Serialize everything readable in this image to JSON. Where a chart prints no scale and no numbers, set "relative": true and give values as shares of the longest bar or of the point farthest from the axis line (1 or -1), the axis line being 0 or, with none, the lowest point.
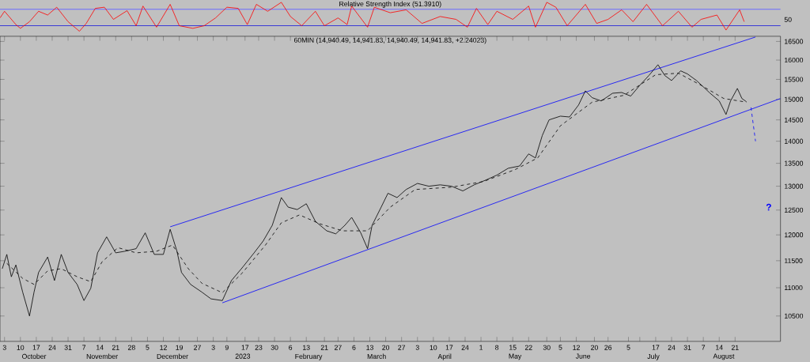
{
  "chart_data": [
    {
      "type": "line",
      "title": "Relative Strength Index (51.3910)",
      "color": "#ff0000",
      "xlim": [
        "2022-10-01",
        "2023-09-10"
      ],
      "relative": true,
      "annotations": [
        "50"
      ],
      "x": [
        "2022-10-01",
        "2022-10-03",
        "2022-10-08",
        "2022-10-10",
        "2022-10-14",
        "2022-10-18",
        "2022-10-22",
        "2022-10-26",
        "2022-10-31",
        "2022-11-05",
        "2022-11-08",
        "2022-11-12",
        "2022-11-16",
        "2022-11-20",
        "2022-11-26",
        "2022-11-30",
        "2022-12-03",
        "2022-12-09",
        "2022-12-15",
        "2022-12-19",
        "2022-12-25",
        "2022-12-30",
        "2023-01-04",
        "2023-01-09",
        "2023-01-14",
        "2023-01-18",
        "2023-01-22",
        "2023-01-27",
        "2023-02-02",
        "2023-02-06",
        "2023-02-11",
        "2023-02-17",
        "2023-02-21",
        "2023-02-27",
        "2023-03-03",
        "2023-03-05",
        "2023-03-12",
        "2023-03-15",
        "2023-03-22",
        "2023-03-29",
        "2023-04-05",
        "2023-04-13",
        "2023-04-20",
        "2023-04-25",
        "2023-04-29",
        "2023-05-04",
        "2023-05-08",
        "2023-05-15",
        "2023-05-22",
        "2023-05-25",
        "2023-05-30",
        "2023-06-03",
        "2023-06-08",
        "2023-06-16",
        "2023-06-21",
        "2023-06-26",
        "2023-07-02",
        "2023-07-07",
        "2023-07-13",
        "2023-07-20",
        "2023-07-27",
        "2023-08-02",
        "2023-08-06",
        "2023-08-13",
        "2023-08-17",
        "2023-08-23",
        "2023-08-25"
      ],
      "values": [
        0.46,
        0.69,
        0.23,
        0.1,
        0.33,
        0.69,
        0.56,
        0.83,
        0.33,
        0,
        0.27,
        0.79,
        0.83,
        0.41,
        0.71,
        0.19,
        0.87,
        0.14,
        0.93,
        0.19,
        0.1,
        0.19,
        0.46,
        0.83,
        0.79,
        0.23,
        0.93,
        0.69,
        1,
        0.51,
        0.19,
        0.69,
        0.19,
        0.46,
        0.23,
        0.87,
        0.14,
        0.83,
        0.64,
        0.74,
        0.27,
        0.51,
        0.41,
        0.14,
        0.79,
        0.23,
        0.69,
        0.41,
        0.87,
        0.14,
        1,
        0.83,
        0.19,
        0.93,
        0.27,
        0.41,
        0.74,
        0.33,
        0.93,
        0.19,
        0.69,
        0.14,
        0.41,
        0.56,
        0.04,
        0.74,
        0.33
      ],
      "ref_lines": [
        {
          "axis": "y",
          "value": 0.76,
          "color": "#6b6bff"
        },
        {
          "axis": "y",
          "value": 0.19,
          "color": "#3a3ad6"
        }
      ]
    },
    {
      "type": "line",
      "title": "60MIN (14,940.49, 14,941.83, 14,940.49, 14,941.83, +2.24023)",
      "log": true,
      "xlim": [
        "2022-10-01",
        "2023-09-10"
      ],
      "ylim": [
        10070,
        16640
      ],
      "yticks": [
        10500,
        11000,
        11500,
        12000,
        12500,
        13000,
        13500,
        14000,
        14500,
        15000,
        15500,
        16000,
        16500
      ],
      "xticks": [
        {
          "value": "2022-10-03",
          "label": "3"
        },
        {
          "value": "2022-10-10",
          "label": "10"
        },
        {
          "value": "2022-10-17",
          "label": "17"
        },
        {
          "value": "2022-10-24",
          "label": "24"
        },
        {
          "value": "2022-10-31",
          "label": "31"
        },
        {
          "value": "2022-11-07",
          "label": "7"
        },
        {
          "value": "2022-11-14",
          "label": "14"
        },
        {
          "value": "2022-11-21",
          "label": "21"
        },
        {
          "value": "2022-11-28",
          "label": "28"
        },
        {
          "value": "2022-12-05",
          "label": "5"
        },
        {
          "value": "2022-12-12",
          "label": "12"
        },
        {
          "value": "2022-12-19",
          "label": "19"
        },
        {
          "value": "2022-12-27",
          "label": "27"
        },
        {
          "value": "2023-01-03",
          "label": "3"
        },
        {
          "value": "2023-01-09",
          "label": "9"
        },
        {
          "value": "2023-01-17",
          "label": "17"
        },
        {
          "value": "2023-01-23",
          "label": "23"
        },
        {
          "value": "2023-01-30",
          "label": "30"
        },
        {
          "value": "2023-02-06",
          "label": "6"
        },
        {
          "value": "2023-02-13",
          "label": "13"
        },
        {
          "value": "2023-02-21",
          "label": "21"
        },
        {
          "value": "2023-02-27",
          "label": "27"
        },
        {
          "value": "2023-03-06",
          "label": "6"
        },
        {
          "value": "2023-03-13",
          "label": "13"
        },
        {
          "value": "2023-03-20",
          "label": "20"
        },
        {
          "value": "2023-03-27",
          "label": "27"
        },
        {
          "value": "2023-04-03",
          "label": "3"
        },
        {
          "value": "2023-04-10",
          "label": "10"
        },
        {
          "value": "2023-04-17",
          "label": "17"
        },
        {
          "value": "2023-04-24",
          "label": "24"
        },
        {
          "value": "2023-05-01",
          "label": "1"
        },
        {
          "value": "2023-05-08",
          "label": "8"
        },
        {
          "value": "2023-05-15",
          "label": "15"
        },
        {
          "value": "2023-05-22",
          "label": "22"
        },
        {
          "value": "2023-05-30",
          "label": "30"
        },
        {
          "value": "2023-06-05",
          "label": "5"
        },
        {
          "value": "2023-06-12",
          "label": "12"
        },
        {
          "value": "2023-06-20",
          "label": "20"
        },
        {
          "value": "2023-06-26",
          "label": "26"
        },
        {
          "value": "2023-07-05",
          "label": "5"
        },
        {
          "value": "2023-07-10",
          "label": null
        },
        {
          "value": "2023-07-17",
          "label": "17"
        },
        {
          "value": "2023-07-24",
          "label": "24"
        },
        {
          "value": "2023-07-31",
          "label": "31"
        },
        {
          "value": "2023-08-07",
          "label": "7"
        },
        {
          "value": "2023-08-14",
          "label": "14"
        },
        {
          "value": "2023-08-21",
          "label": "21"
        }
      ],
      "x2lim": [
        "2022-10-01",
        "2023-09-10"
      ],
      "x2ticks": [
        {
          "value": "2022-10-16",
          "label": "October"
        },
        {
          "value": "2022-11-15",
          "label": "November"
        },
        {
          "value": "2022-12-16",
          "label": "December"
        },
        {
          "value": "2023-01-16",
          "label": "2023"
        },
        {
          "value": "2023-02-14",
          "label": "February"
        },
        {
          "value": "2023-03-16",
          "label": "March"
        },
        {
          "value": "2023-04-15",
          "label": "April"
        },
        {
          "value": "2023-05-16",
          "label": "May"
        },
        {
          "value": "2023-06-15",
          "label": "June"
        },
        {
          "value": "2023-07-16",
          "label": "July"
        },
        {
          "value": "2023-08-16",
          "label": "August"
        }
      ],
      "annotations": [
        "?"
      ],
      "series": [
        {
          "color": "#0000ff",
          "x": [
            "2022-12-15",
            "2023-08-30"
          ],
          "values": [
            12160,
            16620
          ]
        },
        {
          "color": "#0000ff",
          "x": [
            "2023-01-07",
            "2023-09-10"
          ],
          "values": [
            10730,
            15020
          ]
        },
        {
          "color": "#000000",
          "line_style": "dashed",
          "x": [
            "2022-10-04",
            "2022-10-11",
            "2022-10-16",
            "2022-10-22",
            "2022-10-28",
            "2022-11-04",
            "2022-11-10",
            "2022-11-15",
            "2022-11-22",
            "2022-11-30",
            "2022-12-09",
            "2022-12-16",
            "2022-12-23",
            "2022-12-29",
            "2023-01-07",
            "2023-01-16",
            "2023-01-26",
            "2023-02-02",
            "2023-02-10",
            "2023-02-19",
            "2023-03-01",
            "2023-03-12",
            "2023-03-22",
            "2023-04-02",
            "2023-04-18",
            "2023-05-02",
            "2023-05-16",
            "2023-05-26",
            "2023-06-05",
            "2023-06-19",
            "2023-07-03",
            "2023-07-17",
            "2023-07-27",
            "2023-08-06",
            "2023-08-16",
            "2023-08-26"
          ],
          "values": [
            11450,
            11170,
            11060,
            11310,
            11350,
            11200,
            11110,
            11480,
            11750,
            11650,
            11680,
            11800,
            11350,
            11080,
            10910,
            11280,
            11800,
            12240,
            12400,
            12220,
            12080,
            12080,
            12560,
            12930,
            12980,
            13100,
            13360,
            13620,
            14360,
            14930,
            15100,
            15620,
            15660,
            15350,
            15020,
            14930
          ]
        },
        {
          "color": "#0000ff",
          "line_style": "dashed",
          "x": [
            "2023-08-28",
            "2023-08-30"
          ],
          "values": [
            14800,
            14000
          ]
        },
        {
          "color": "#000000",
          "x": [
            "2022-10-02",
            "2022-10-04",
            "2022-10-06",
            "2022-10-08",
            "2022-10-11",
            "2022-10-14",
            "2022-10-16",
            "2022-10-18",
            "2022-10-22",
            "2022-10-25",
            "2022-10-28",
            "2022-10-31",
            "2022-11-04",
            "2022-11-07",
            "2022-11-10",
            "2022-11-13",
            "2022-11-17",
            "2022-11-21",
            "2022-11-25",
            "2022-11-30",
            "2022-12-04",
            "2022-12-08",
            "2022-12-12",
            "2022-12-15",
            "2022-12-18",
            "2022-12-20",
            "2022-12-24",
            "2022-12-29",
            "2023-01-02",
            "2023-01-07",
            "2023-01-11",
            "2023-01-16",
            "2023-01-21",
            "2023-01-25",
            "2023-01-29",
            "2023-02-02",
            "2023-02-05",
            "2023-02-09",
            "2023-02-13",
            "2023-02-17",
            "2023-02-22",
            "2023-02-26",
            "2023-03-02",
            "2023-03-05",
            "2023-03-09",
            "2023-03-12",
            "2023-03-14",
            "2023-03-18",
            "2023-03-21",
            "2023-03-25",
            "2023-03-29",
            "2023-04-03",
            "2023-04-08",
            "2023-04-13",
            "2023-04-18",
            "2023-04-23",
            "2023-04-28",
            "2023-05-03",
            "2023-05-08",
            "2023-05-13",
            "2023-05-18",
            "2023-05-22",
            "2023-05-25",
            "2023-05-28",
            "2023-05-31",
            "2023-06-05",
            "2023-06-09",
            "2023-06-13",
            "2023-06-16",
            "2023-06-19",
            "2023-06-23",
            "2023-06-28",
            "2023-07-02",
            "2023-07-06",
            "2023-07-10",
            "2023-07-14",
            "2023-07-18",
            "2023-07-21",
            "2023-07-24",
            "2023-07-28",
            "2023-07-31",
            "2023-08-04",
            "2023-08-07",
            "2023-08-10",
            "2023-08-14",
            "2023-08-17",
            "2023-08-19",
            "2023-08-22",
            "2023-08-24",
            "2023-08-26"
          ],
          "values": [
            11350,
            11620,
            11200,
            11420,
            10920,
            10500,
            10920,
            11280,
            11570,
            11130,
            11620,
            11280,
            11060,
            10770,
            10990,
            11650,
            11960,
            11650,
            11680,
            11730,
            12040,
            11620,
            11620,
            12110,
            11680,
            11280,
            11060,
            10920,
            10800,
            10770,
            11130,
            11380,
            11650,
            11880,
            12190,
            12760,
            12560,
            12510,
            12630,
            12270,
            12080,
            12020,
            12190,
            12350,
            12040,
            11730,
            12190,
            12560,
            12850,
            12760,
            12930,
            13060,
            13000,
            13030,
            13000,
            12900,
            13030,
            13130,
            13240,
            13390,
            13440,
            13710,
            13620,
            14130,
            14500,
            14590,
            14570,
            14860,
            15210,
            15040,
            14960,
            15150,
            15170,
            15080,
            15350,
            15600,
            15880,
            15600,
            15470,
            15720,
            15640,
            15470,
            15310,
            15150,
            14960,
            14630,
            14960,
            15270,
            15020,
            14940
          ]
        }
      ]
    }
  ]
}
